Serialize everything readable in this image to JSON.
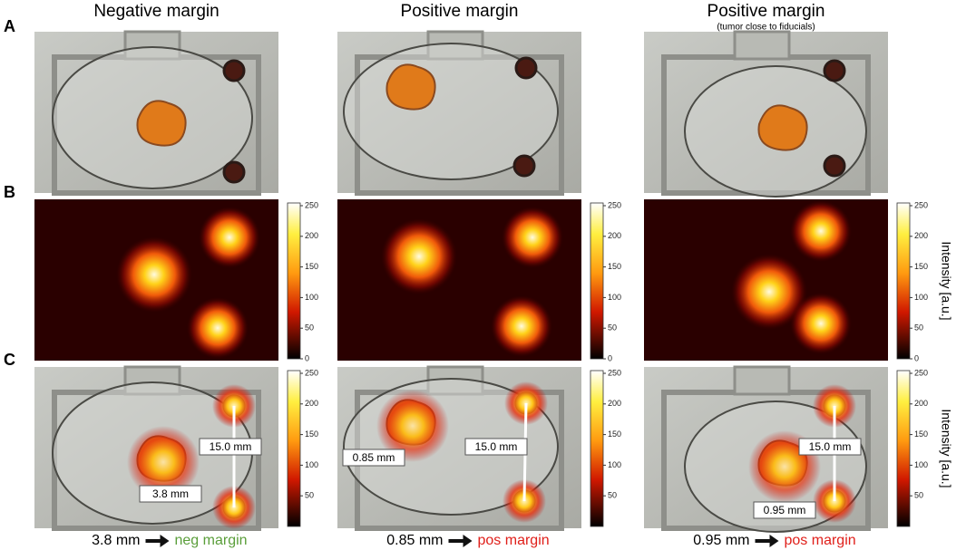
{
  "row_labels": [
    "A",
    "B",
    "C"
  ],
  "columns": [
    {
      "title": "Negative margin",
      "caption_distance": "3.8 mm",
      "caption_result": "neg margin",
      "result_color": "#5a9e3a",
      "measurements": [
        "15.0 mm",
        "3.8 mm"
      ]
    },
    {
      "title": "Positive margin",
      "caption_distance": "0.85 mm",
      "caption_result": "pos margin",
      "result_color": "#e0201b",
      "measurements": [
        "0.85 mm",
        "15.0 mm"
      ]
    },
    {
      "title": "Positive margin",
      "note": "(tumor close to fiducials)",
      "caption_distance": "0.95 mm",
      "caption_result": "pos margin",
      "result_color": "#e0201b",
      "measurements": [
        "15.0 mm",
        "0.95 mm"
      ]
    }
  ],
  "colorbar_ticks_b": [
    0,
    50,
    100,
    150,
    200,
    250
  ],
  "colorbar_ticks_c": [
    50,
    100,
    150,
    200,
    250
  ],
  "colorbar_label": "Intensity [a.u.]"
}
